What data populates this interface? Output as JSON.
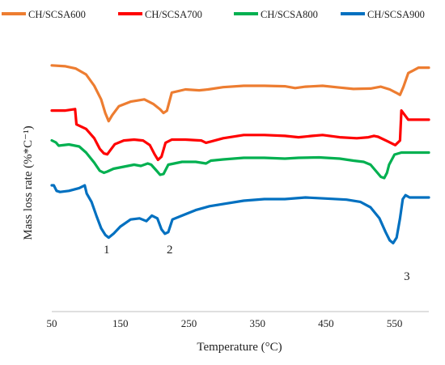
{
  "chart_data": {
    "type": "line",
    "xlabel": "Temperature (°C)",
    "ylabel": "Mass loss rate (%*C⁻¹)",
    "xlim": [
      50,
      600
    ],
    "xticks": [
      50,
      150,
      250,
      350,
      450,
      550
    ],
    "yticks_shown": false,
    "grid": false,
    "legend_position": "top",
    "peak_labels": [
      {
        "text": "1",
        "x": 130
      },
      {
        "text": "2",
        "x": 222
      },
      {
        "text": "3",
        "x": 568
      }
    ],
    "series": [
      {
        "name": "CH/SCSA600",
        "color": "#ED7D31",
        "points": [
          [
            50,
            0.95
          ],
          [
            70,
            0.93
          ],
          [
            85,
            0.88
          ],
          [
            100,
            0.75
          ],
          [
            112,
            0.5
          ],
          [
            122,
            0.2
          ],
          [
            128,
            -0.1
          ],
          [
            133,
            -0.28
          ],
          [
            138,
            -0.15
          ],
          [
            148,
            0.05
          ],
          [
            165,
            0.15
          ],
          [
            185,
            0.2
          ],
          [
            198,
            0.1
          ],
          [
            208,
            -0.02
          ],
          [
            213,
            -0.1
          ],
          [
            218,
            -0.05
          ],
          [
            225,
            0.35
          ],
          [
            245,
            0.42
          ],
          [
            265,
            0.4
          ],
          [
            278,
            0.42
          ],
          [
            300,
            0.47
          ],
          [
            330,
            0.5
          ],
          [
            360,
            0.5
          ],
          [
            390,
            0.49
          ],
          [
            405,
            0.45
          ],
          [
            420,
            0.48
          ],
          [
            445,
            0.5
          ],
          [
            470,
            0.46
          ],
          [
            490,
            0.43
          ],
          [
            515,
            0.44
          ],
          [
            530,
            0.48
          ],
          [
            543,
            0.42
          ],
          [
            552,
            0.35
          ],
          [
            558,
            0.3
          ],
          [
            563,
            0.48
          ],
          [
            570,
            0.78
          ],
          [
            585,
            0.9
          ],
          [
            600,
            0.9
          ]
        ]
      },
      {
        "name": "CH/SCSA700",
        "color": "#FF0000",
        "points": [
          [
            50,
            0.85
          ],
          [
            70,
            0.85
          ],
          [
            84,
            0.88
          ],
          [
            86,
            0.55
          ],
          [
            100,
            0.45
          ],
          [
            112,
            0.25
          ],
          [
            120,
            0.02
          ],
          [
            126,
            -0.08
          ],
          [
            131,
            -0.1
          ],
          [
            135,
            -0.02
          ],
          [
            142,
            0.12
          ],
          [
            155,
            0.2
          ],
          [
            170,
            0.22
          ],
          [
            183,
            0.2
          ],
          [
            193,
            0.1
          ],
          [
            200,
            -0.1
          ],
          [
            205,
            -0.22
          ],
          [
            210,
            -0.15
          ],
          [
            216,
            0.15
          ],
          [
            225,
            0.22
          ],
          [
            245,
            0.22
          ],
          [
            268,
            0.2
          ],
          [
            275,
            0.15
          ],
          [
            283,
            0.18
          ],
          [
            300,
            0.25
          ],
          [
            330,
            0.32
          ],
          [
            360,
            0.32
          ],
          [
            390,
            0.3
          ],
          [
            410,
            0.27
          ],
          [
            430,
            0.3
          ],
          [
            445,
            0.32
          ],
          [
            470,
            0.27
          ],
          [
            495,
            0.25
          ],
          [
            512,
            0.27
          ],
          [
            520,
            0.3
          ],
          [
            526,
            0.28
          ],
          [
            540,
            0.18
          ],
          [
            551,
            0.1
          ],
          [
            558,
            0.2
          ],
          [
            560,
            0.85
          ],
          [
            570,
            0.65
          ],
          [
            585,
            0.65
          ],
          [
            600,
            0.65
          ]
        ]
      },
      {
        "name": "CH/SCSA800",
        "color": "#00B050",
        "points": [
          [
            50,
            1.05
          ],
          [
            56,
            1.0
          ],
          [
            60,
            0.92
          ],
          [
            75,
            0.95
          ],
          [
            90,
            0.9
          ],
          [
            100,
            0.75
          ],
          [
            112,
            0.5
          ],
          [
            120,
            0.3
          ],
          [
            126,
            0.25
          ],
          [
            131,
            0.28
          ],
          [
            140,
            0.35
          ],
          [
            155,
            0.4
          ],
          [
            170,
            0.45
          ],
          [
            180,
            0.42
          ],
          [
            190,
            0.48
          ],
          [
            195,
            0.45
          ],
          [
            203,
            0.3
          ],
          [
            208,
            0.2
          ],
          [
            213,
            0.22
          ],
          [
            220,
            0.45
          ],
          [
            240,
            0.52
          ],
          [
            260,
            0.52
          ],
          [
            275,
            0.48
          ],
          [
            282,
            0.55
          ],
          [
            300,
            0.58
          ],
          [
            330,
            0.62
          ],
          [
            360,
            0.62
          ],
          [
            390,
            0.6
          ],
          [
            410,
            0.62
          ],
          [
            440,
            0.63
          ],
          [
            470,
            0.6
          ],
          [
            490,
            0.55
          ],
          [
            505,
            0.52
          ],
          [
            515,
            0.45
          ],
          [
            525,
            0.25
          ],
          [
            530,
            0.15
          ],
          [
            535,
            0.12
          ],
          [
            539,
            0.25
          ],
          [
            542,
            0.45
          ],
          [
            550,
            0.7
          ],
          [
            560,
            0.75
          ],
          [
            600,
            0.75
          ]
        ]
      },
      {
        "name": "CH/SCSA900",
        "color": "#0070C0",
        "points": [
          [
            50,
            1.0
          ],
          [
            53,
            1.0
          ],
          [
            57,
            0.9
          ],
          [
            62,
            0.88
          ],
          [
            75,
            0.9
          ],
          [
            90,
            0.95
          ],
          [
            98,
            1.0
          ],
          [
            101,
            0.85
          ],
          [
            108,
            0.7
          ],
          [
            115,
            0.45
          ],
          [
            122,
            0.22
          ],
          [
            128,
            0.1
          ],
          [
            133,
            0.05
          ],
          [
            140,
            0.12
          ],
          [
            150,
            0.25
          ],
          [
            165,
            0.38
          ],
          [
            178,
            0.4
          ],
          [
            188,
            0.35
          ],
          [
            196,
            0.45
          ],
          [
            204,
            0.4
          ],
          [
            210,
            0.2
          ],
          [
            215,
            0.12
          ],
          [
            220,
            0.15
          ],
          [
            226,
            0.38
          ],
          [
            240,
            0.45
          ],
          [
            260,
            0.55
          ],
          [
            280,
            0.62
          ],
          [
            300,
            0.66
          ],
          [
            330,
            0.72
          ],
          [
            360,
            0.75
          ],
          [
            390,
            0.75
          ],
          [
            420,
            0.78
          ],
          [
            450,
            0.76
          ],
          [
            480,
            0.74
          ],
          [
            500,
            0.7
          ],
          [
            515,
            0.6
          ],
          [
            528,
            0.4
          ],
          [
            537,
            0.15
          ],
          [
            543,
            0.0
          ],
          [
            548,
            -0.05
          ],
          [
            553,
            0.05
          ],
          [
            558,
            0.4
          ],
          [
            562,
            0.75
          ],
          [
            566,
            0.82
          ],
          [
            572,
            0.78
          ],
          [
            600,
            0.78
          ]
        ]
      }
    ]
  }
}
